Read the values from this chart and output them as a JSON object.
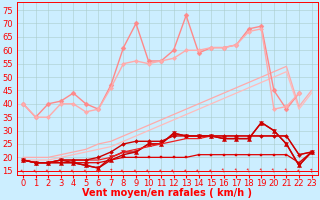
{
  "background_color": "#cceeff",
  "grid_color": "#aacccc",
  "xlabel": "Vent moyen/en rafales ( km/h )",
  "xticks": [
    0,
    1,
    2,
    3,
    4,
    5,
    6,
    7,
    8,
    9,
    10,
    11,
    12,
    13,
    14,
    15,
    16,
    17,
    18,
    19,
    20,
    21,
    22,
    23
  ],
  "yticks": [
    15,
    20,
    25,
    30,
    35,
    40,
    45,
    50,
    55,
    60,
    65,
    70,
    75
  ],
  "ylim": [
    13.5,
    78
  ],
  "xlim": [
    -0.5,
    23.5
  ],
  "lines": [
    {
      "x": [
        0,
        1,
        2,
        3,
        4,
        5,
        6,
        7,
        8,
        9,
        10,
        11,
        12,
        13,
        14,
        15,
        16,
        17,
        18,
        19,
        20,
        21,
        22,
        23
      ],
      "y": [
        19,
        19,
        19,
        20,
        21,
        22,
        23,
        24,
        26,
        28,
        30,
        32,
        34,
        36,
        38,
        40,
        42,
        44,
        46,
        48,
        50,
        52,
        38,
        44
      ],
      "color": "#ffbbbb",
      "linewidth": 0.9,
      "marker": null,
      "markersize": 0
    },
    {
      "x": [
        0,
        1,
        2,
        3,
        4,
        5,
        6,
        7,
        8,
        9,
        10,
        11,
        12,
        13,
        14,
        15,
        16,
        17,
        18,
        19,
        20,
        21,
        22,
        23
      ],
      "y": [
        20,
        20,
        20,
        21,
        22,
        23,
        25,
        26,
        28,
        30,
        32,
        34,
        36,
        38,
        40,
        42,
        44,
        46,
        48,
        50,
        52,
        54,
        39,
        45
      ],
      "color": "#ffaaaa",
      "linewidth": 0.9,
      "marker": null,
      "markersize": 0
    },
    {
      "x": [
        0,
        1,
        2,
        3,
        4,
        5,
        6,
        7,
        8,
        9,
        10,
        11,
        12,
        13,
        14,
        15,
        16,
        17,
        18,
        19,
        20,
        21,
        22,
        23
      ],
      "y": [
        40,
        35,
        40,
        41,
        44,
        40,
        38,
        47,
        61,
        70,
        56,
        56,
        60,
        73,
        59,
        61,
        61,
        62,
        68,
        69,
        45,
        38,
        44,
        null
      ],
      "color": "#ff8888",
      "linewidth": 1.0,
      "marker": "D",
      "markersize": 2.5
    },
    {
      "x": [
        0,
        1,
        2,
        3,
        4,
        5,
        6,
        7,
        8,
        9,
        10,
        11,
        12,
        13,
        14,
        15,
        16,
        17,
        18,
        19,
        20,
        21,
        22,
        23
      ],
      "y": [
        40,
        35,
        35,
        40,
        40,
        37,
        38,
        46,
        55,
        56,
        55,
        56,
        57,
        60,
        60,
        61,
        61,
        62,
        67,
        68,
        38,
        39,
        44,
        null
      ],
      "color": "#ffaaaa",
      "linewidth": 1.0,
      "marker": "D",
      "markersize": 2.2
    },
    {
      "x": [
        0,
        1,
        2,
        3,
        4,
        5,
        6,
        7,
        8,
        9,
        10,
        11,
        12,
        13,
        14,
        15,
        16,
        17,
        18,
        19,
        20,
        21,
        22,
        23
      ],
      "y": [
        19,
        18,
        18,
        18,
        18,
        18,
        18,
        19,
        20,
        20,
        20,
        20,
        20,
        20,
        21,
        21,
        21,
        21,
        21,
        21,
        21,
        21,
        18,
        22
      ],
      "color": "#dd0000",
      "linewidth": 0.9,
      "marker": "s",
      "markersize": 2.0
    },
    {
      "x": [
        0,
        1,
        2,
        3,
        4,
        5,
        6,
        7,
        8,
        9,
        10,
        11,
        12,
        13,
        14,
        15,
        16,
        17,
        18,
        19,
        20,
        21,
        22,
        23
      ],
      "y": [
        19,
        18,
        18,
        18,
        18,
        17,
        16,
        19,
        21,
        22,
        25,
        25,
        29,
        28,
        28,
        28,
        27,
        27,
        27,
        33,
        30,
        25,
        17,
        22
      ],
      "color": "#cc0000",
      "linewidth": 1.0,
      "marker": "^",
      "markersize": 3.0
    },
    {
      "x": [
        0,
        1,
        2,
        3,
        4,
        5,
        6,
        7,
        8,
        9,
        10,
        11,
        12,
        13,
        14,
        15,
        16,
        17,
        18,
        19,
        20,
        21,
        22,
        23
      ],
      "y": [
        19,
        18,
        18,
        19,
        18,
        17,
        16,
        20,
        22,
        22,
        25,
        25,
        29,
        28,
        28,
        28,
        27,
        27,
        27,
        33,
        30,
        25,
        17,
        22
      ],
      "color": "#cc0000",
      "linewidth": 1.0,
      "marker": "v",
      "markersize": 2.8
    },
    {
      "x": [
        0,
        1,
        2,
        3,
        4,
        5,
        6,
        7,
        8,
        9,
        10,
        11,
        12,
        13,
        14,
        15,
        16,
        17,
        18,
        19,
        20,
        21,
        22,
        23
      ],
      "y": [
        19,
        18,
        18,
        19,
        19,
        19,
        19,
        20,
        22,
        23,
        24,
        25,
        26,
        27,
        27,
        28,
        28,
        28,
        28,
        28,
        28,
        28,
        21,
        22
      ],
      "color": "#ee2222",
      "linewidth": 0.9,
      "marker": null,
      "markersize": 0
    },
    {
      "x": [
        0,
        1,
        2,
        3,
        4,
        5,
        6,
        7,
        8,
        9,
        10,
        11,
        12,
        13,
        14,
        15,
        16,
        17,
        18,
        19,
        20,
        21,
        22,
        23
      ],
      "y": [
        19,
        18,
        18,
        19,
        19,
        19,
        20,
        22,
        25,
        26,
        26,
        26,
        28,
        28,
        28,
        28,
        28,
        28,
        28,
        28,
        28,
        28,
        21,
        22
      ],
      "color": "#cc0000",
      "linewidth": 1.0,
      "marker": "D",
      "markersize": 2.0
    }
  ],
  "wind_arrows": [
    "s",
    "s",
    "s",
    "s",
    "s",
    "s",
    "u",
    "u",
    "s",
    "s",
    "s",
    "s",
    "s",
    "s",
    "s",
    "s",
    "s",
    "s",
    "s",
    "s",
    "s",
    "s",
    "s",
    "u"
  ],
  "xlabel_fontsize": 7,
  "tick_fontsize": 6
}
